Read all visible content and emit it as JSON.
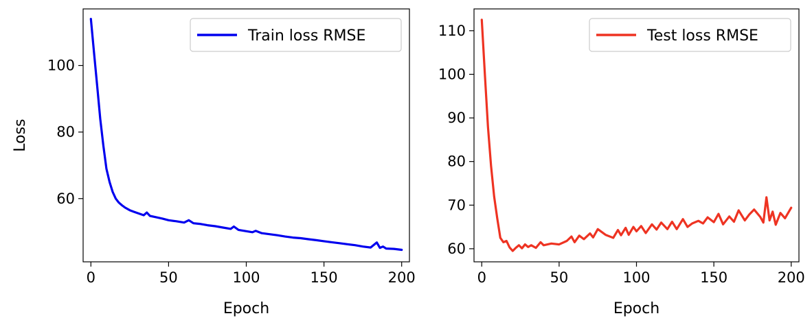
{
  "chart_data": [
    {
      "type": "line",
      "xlabel": "Epoch",
      "ylabel": "Loss",
      "xlim": [
        -5,
        205
      ],
      "ylim": [
        41,
        117
      ],
      "xticks": [
        0,
        50,
        100,
        150,
        200
      ],
      "yticks": [
        60,
        80,
        100
      ],
      "grid": false,
      "legend": "top-right",
      "series": [
        {
          "name": "Train loss RMSE",
          "color": "#0000ee",
          "x": [
            0,
            2,
            4,
            6,
            8,
            10,
            12,
            14,
            16,
            18,
            20,
            22,
            25,
            28,
            31,
            34,
            36,
            38,
            42,
            46,
            50,
            55,
            60,
            63,
            66,
            70,
            75,
            80,
            85,
            90,
            92,
            95,
            100,
            104,
            106,
            110,
            115,
            120,
            125,
            130,
            135,
            140,
            145,
            150,
            155,
            160,
            165,
            170,
            175,
            180,
            184,
            186,
            188,
            190,
            195,
            200
          ],
          "y": [
            114,
            104,
            94,
            84,
            76,
            69,
            65,
            62,
            60,
            58.8,
            58,
            57.3,
            56.5,
            56,
            55.5,
            55,
            55.8,
            54.8,
            54.4,
            54,
            53.5,
            53.2,
            52.8,
            53.5,
            52.6,
            52.4,
            52,
            51.7,
            51.3,
            50.9,
            51.6,
            50.6,
            50.2,
            49.9,
            50.3,
            49.6,
            49.3,
            49,
            48.6,
            48.3,
            48.1,
            47.8,
            47.5,
            47.2,
            46.9,
            46.6,
            46.3,
            46,
            45.6,
            45.3,
            46.8,
            45.2,
            45.6,
            45,
            44.9,
            44.6
          ]
        }
      ]
    },
    {
      "type": "line",
      "xlabel": "Epoch",
      "ylabel": "",
      "xlim": [
        -5,
        205
      ],
      "ylim": [
        57,
        115
      ],
      "xticks": [
        0,
        50,
        100,
        150,
        200
      ],
      "yticks": [
        60,
        70,
        80,
        90,
        100,
        110
      ],
      "grid": false,
      "legend": "top-right",
      "series": [
        {
          "name": "Test loss RMSE",
          "color": "#ee3322",
          "x": [
            0,
            2,
            4,
            6,
            8,
            10,
            12,
            14,
            16,
            18,
            20,
            22,
            24,
            26,
            28,
            30,
            32,
            35,
            38,
            40,
            45,
            50,
            55,
            58,
            60,
            63,
            66,
            70,
            72,
            75,
            80,
            85,
            88,
            90,
            93,
            95,
            98,
            100,
            103,
            106,
            110,
            113,
            116,
            120,
            123,
            126,
            130,
            133,
            136,
            140,
            143,
            146,
            150,
            153,
            156,
            160,
            163,
            166,
            170,
            173,
            176,
            180,
            182,
            184,
            186,
            188,
            190,
            193,
            196,
            200
          ],
          "y": [
            112.5,
            100,
            88,
            79,
            72,
            67,
            62.5,
            61.5,
            61.8,
            60.3,
            59.5,
            60.2,
            60.8,
            60.1,
            61,
            60.4,
            60.8,
            60.2,
            61.5,
            60.8,
            61.2,
            61,
            61.8,
            62.8,
            61.5,
            63,
            62.2,
            63.5,
            62.6,
            64.5,
            63.2,
            62.5,
            64.3,
            63.1,
            64.8,
            63.2,
            65,
            64,
            65.2,
            63.6,
            65.6,
            64.4,
            66,
            64.5,
            66.2,
            64.5,
            66.8,
            65,
            65.8,
            66.4,
            65.8,
            67.2,
            66.1,
            68,
            65.6,
            67.4,
            66.2,
            68.8,
            66.5,
            67.9,
            69,
            67.3,
            66,
            71.8,
            66.5,
            68.5,
            65.5,
            68.2,
            67,
            69.4
          ]
        }
      ]
    }
  ]
}
